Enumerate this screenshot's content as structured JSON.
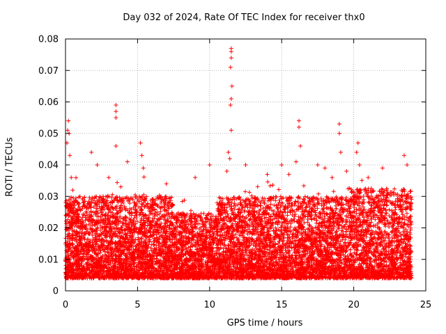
{
  "chart_data": {
    "type": "scatter",
    "title": "Day 032 of 2024, Rate Of TEC Index for receiver thx0",
    "xlabel": "GPS time / hours",
    "ylabel": "ROTI / TECUs",
    "xlim": [
      0,
      25
    ],
    "ylim": [
      0,
      0.08
    ],
    "xticks": [
      0,
      5,
      10,
      15,
      20,
      25
    ],
    "yticks": [
      0,
      0.01,
      0.02,
      0.03,
      0.04,
      0.05,
      0.06,
      0.07,
      0.08
    ],
    "ytick_labels": [
      "0",
      "0.01",
      "0.02",
      "0.03",
      "0.04",
      "0.05",
      "0.06",
      "0.07",
      "0.08"
    ],
    "grid": true,
    "marker": "+",
    "color": "#ff0000",
    "time_range_hours": [
      0,
      24
    ],
    "series": [
      {
        "name": "ROTI",
        "sampled_points": [
          [
            0.1,
            0.047
          ],
          [
            0.15,
            0.051
          ],
          [
            0.2,
            0.054
          ],
          [
            0.25,
            0.05
          ],
          [
            0.3,
            0.043
          ],
          [
            0.4,
            0.036
          ],
          [
            0.5,
            0.032
          ],
          [
            1.8,
            0.044
          ],
          [
            2.2,
            0.04
          ],
          [
            3.0,
            0.036
          ],
          [
            3.5,
            0.059
          ],
          [
            3.5,
            0.057
          ],
          [
            3.5,
            0.055
          ],
          [
            3.5,
            0.046
          ],
          [
            4.3,
            0.041
          ],
          [
            5.2,
            0.047
          ],
          [
            5.3,
            0.043
          ],
          [
            5.4,
            0.039
          ],
          [
            7.0,
            0.034
          ],
          [
            9.0,
            0.036
          ],
          [
            10.0,
            0.04
          ],
          [
            11.2,
            0.038
          ],
          [
            11.3,
            0.044
          ],
          [
            11.4,
            0.042
          ],
          [
            11.5,
            0.077
          ],
          [
            11.5,
            0.076
          ],
          [
            11.5,
            0.074
          ],
          [
            11.45,
            0.071
          ],
          [
            11.55,
            0.065
          ],
          [
            11.5,
            0.061
          ],
          [
            11.45,
            0.059
          ],
          [
            11.5,
            0.051
          ],
          [
            12.5,
            0.04
          ],
          [
            14.0,
            0.037
          ],
          [
            15.0,
            0.04
          ],
          [
            15.5,
            0.037
          ],
          [
            16.2,
            0.054
          ],
          [
            16.2,
            0.052
          ],
          [
            16.3,
            0.046
          ],
          [
            16.0,
            0.041
          ],
          [
            17.5,
            0.04
          ],
          [
            18.0,
            0.039
          ],
          [
            18.5,
            0.036
          ],
          [
            19.0,
            0.053
          ],
          [
            19.0,
            0.05
          ],
          [
            19.1,
            0.044
          ],
          [
            19.5,
            0.038
          ],
          [
            20.3,
            0.047
          ],
          [
            20.2,
            0.044
          ],
          [
            20.4,
            0.04
          ],
          [
            21.0,
            0.036
          ],
          [
            22.0,
            0.039
          ],
          [
            23.5,
            0.043
          ],
          [
            23.7,
            0.04
          ]
        ],
        "baseline_band": {
          "typical_min": 0.004,
          "typical_max": 0.03
        }
      }
    ]
  }
}
